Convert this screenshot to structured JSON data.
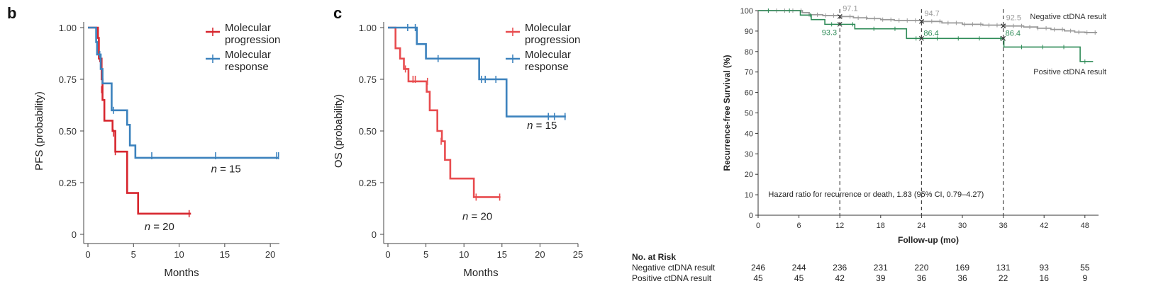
{
  "colors": {
    "progression": "#d7262e",
    "progression_light": "#e84c4f",
    "response": "#3c82bd",
    "negative": "#999999",
    "positive": "#2e8b57"
  },
  "chart_data": [
    {
      "panel": "b",
      "type": "line",
      "xlabel": "Months",
      "ylabel": "PFS (probability)",
      "xlim": [
        0,
        21
      ],
      "ylim": [
        0,
        1
      ],
      "xticks": [
        "0",
        "5",
        "10",
        "15",
        "20"
      ],
      "xtick_values": [
        0,
        5,
        10,
        15,
        20
      ],
      "yticks": [
        "0",
        "0.25",
        "0.50",
        "0.75",
        "1.00"
      ],
      "ytick_values": [
        0,
        0.25,
        0.5,
        0.75,
        1.0
      ],
      "legend": [
        "Molecular progression",
        "Molecular response"
      ],
      "legend_lines": [
        [
          "Molecular",
          "progression"
        ],
        [
          "Molecular",
          "response"
        ]
      ],
      "series": [
        {
          "name": "Molecular progression",
          "color": "#d7262e",
          "steps": [
            [
              0,
              1.0
            ],
            [
              1.1,
              0.95
            ],
            [
              1.2,
              0.85
            ],
            [
              1.5,
              0.75
            ],
            [
              1.6,
              0.65
            ],
            [
              1.8,
              0.55
            ],
            [
              2.7,
              0.5
            ],
            [
              3.0,
              0.4
            ],
            [
              4.3,
              0.2
            ],
            [
              5.5,
              0.1
            ],
            [
              11.3,
              0.1
            ]
          ],
          "censors": [
            [
              1.3,
              0.85
            ],
            [
              1.5,
              0.7
            ],
            [
              2.8,
              0.49
            ],
            [
              3.0,
              0.4
            ],
            [
              11.1,
              0.1
            ]
          ],
          "annotation": "n = 20",
          "annotation_at": [
            6.2,
            0.02
          ]
        },
        {
          "name": "Molecular response",
          "color": "#3c82bd",
          "steps": [
            [
              0,
              1.0
            ],
            [
              0.9,
              0.93
            ],
            [
              1.0,
              0.87
            ],
            [
              1.4,
              0.8
            ],
            [
              1.6,
              0.73
            ],
            [
              2.6,
              0.6
            ],
            [
              4.3,
              0.53
            ],
            [
              4.6,
              0.43
            ],
            [
              5.2,
              0.37
            ],
            [
              20.9,
              0.37
            ]
          ],
          "censors": [
            [
              1.3,
              0.87
            ],
            [
              2.8,
              0.6
            ],
            [
              7.0,
              0.38
            ],
            [
              14.0,
              0.38
            ],
            [
              20.7,
              0.38
            ],
            [
              20.9,
              0.38
            ]
          ],
          "annotation": "n = 15",
          "annotation_at": [
            13.5,
            0.3
          ]
        }
      ]
    },
    {
      "panel": "c",
      "type": "line",
      "xlabel": "Months",
      "ylabel": "OS (probability)",
      "xlim": [
        0,
        25
      ],
      "ylim": [
        0,
        1
      ],
      "xticks": [
        "0",
        "5",
        "10",
        "15",
        "20",
        "25"
      ],
      "xtick_values": [
        0,
        5,
        10,
        15,
        20,
        25
      ],
      "yticks": [
        "0",
        "0.25",
        "0.50",
        "0.75",
        "1.00"
      ],
      "ytick_values": [
        0,
        0.25,
        0.5,
        0.75,
        1.0
      ],
      "legend": [
        "Molecular progression",
        "Molecular response"
      ],
      "legend_lines": [
        [
          "Molecular",
          "progression"
        ],
        [
          "Molecular",
          "response"
        ]
      ],
      "series": [
        {
          "name": "Molecular progression",
          "color": "#e84c4f",
          "steps": [
            [
              0,
              1.0
            ],
            [
              1.0,
              0.9
            ],
            [
              1.6,
              0.85
            ],
            [
              2.1,
              0.8
            ],
            [
              2.7,
              0.74
            ],
            [
              5.1,
              0.69
            ],
            [
              5.5,
              0.6
            ],
            [
              6.5,
              0.5
            ],
            [
              7.1,
              0.45
            ],
            [
              7.5,
              0.36
            ],
            [
              8.2,
              0.27
            ],
            [
              11.3,
              0.18
            ],
            [
              14.8,
              0.18
            ]
          ],
          "censors": [
            [
              2.3,
              0.8
            ],
            [
              3.3,
              0.75
            ],
            [
              3.6,
              0.75
            ],
            [
              5.2,
              0.74
            ],
            [
              7.0,
              0.45
            ],
            [
              11.6,
              0.18
            ],
            [
              14.7,
              0.18
            ]
          ],
          "annotation": "n = 20",
          "annotation_at": [
            9.8,
            0.07
          ]
        },
        {
          "name": "Molecular response",
          "color": "#3c82bd",
          "steps": [
            [
              0,
              1.0
            ],
            [
              3.8,
              0.92
            ],
            [
              5.0,
              0.85
            ],
            [
              12.0,
              0.75
            ],
            [
              15.6,
              0.57
            ],
            [
              23.4,
              0.57
            ]
          ],
          "censors": [
            [
              2.6,
              1.0
            ],
            [
              3.6,
              1.0
            ],
            [
              6.6,
              0.85
            ],
            [
              12.3,
              0.75
            ],
            [
              12.8,
              0.75
            ],
            [
              14.2,
              0.75
            ],
            [
              21.1,
              0.57
            ],
            [
              21.9,
              0.57
            ],
            [
              23.3,
              0.57
            ]
          ],
          "annotation": "n = 15",
          "annotation_at": [
            18.3,
            0.51
          ]
        }
      ]
    },
    {
      "panel": "",
      "type": "line",
      "xlabel": "Follow-up (mo)",
      "ylabel": "Recurrence-free Survival (%)",
      "xlim": [
        0,
        50
      ],
      "ylim": [
        0,
        100
      ],
      "xticks": [
        "0",
        "6",
        "12",
        "18",
        "24",
        "30",
        "36",
        "42",
        "48"
      ],
      "xtick_values": [
        0,
        6,
        12,
        18,
        24,
        30,
        36,
        42,
        48
      ],
      "yticks": [
        "0",
        "10",
        "20",
        "30",
        "40",
        "50",
        "60",
        "70",
        "80",
        "90",
        "100"
      ],
      "ytick_values": [
        0,
        10,
        20,
        30,
        40,
        50,
        60,
        70,
        80,
        90,
        100
      ],
      "annotation": "Hazard ratio for recurrence or death, 1.83 (95% CI, 0.79–4.27)",
      "reference_lines_x": [
        12,
        24,
        36
      ],
      "series": [
        {
          "name": "Negative ctDNA result",
          "color": "#999999",
          "steps": [
            [
              0,
              100
            ],
            [
              6.5,
              99
            ],
            [
              7.5,
              98
            ],
            [
              9.5,
              97.6
            ],
            [
              12,
              97.1
            ],
            [
              14,
              96.5
            ],
            [
              16,
              96.1
            ],
            [
              18,
              95.6
            ],
            [
              20,
              95.2
            ],
            [
              24,
              94.7
            ],
            [
              27,
              94.0
            ],
            [
              30,
              93.3
            ],
            [
              33,
              92.9
            ],
            [
              36,
              92.5
            ],
            [
              39,
              92.0
            ],
            [
              41,
              91.4
            ],
            [
              43,
              90.8
            ],
            [
              45,
              90.1
            ],
            [
              46.5,
              89.5
            ],
            [
              48,
              89.3
            ],
            [
              49.8,
              89.3
            ]
          ],
          "point_labels": [
            {
              "x": 12,
              "y": 97.1,
              "label": "97.1"
            },
            {
              "x": 24,
              "y": 94.7,
              "label": "94.7"
            },
            {
              "x": 36,
              "y": 92.5,
              "label": "92.5"
            }
          ],
          "end_label": "Negative ctDNA result"
        },
        {
          "name": "Positive ctDNA result",
          "color": "#2e8b57",
          "steps": [
            [
              0,
              100
            ],
            [
              6.2,
              97.8
            ],
            [
              7.8,
              95.6
            ],
            [
              9.8,
              93.3
            ],
            [
              14.2,
              91.1
            ],
            [
              21.8,
              86.4
            ],
            [
              36.1,
              82.2
            ],
            [
              47.3,
              75.1
            ],
            [
              49.2,
              75.1
            ]
          ],
          "point_labels": [
            {
              "x": 12,
              "y": 93.3,
              "label": "93.3"
            },
            {
              "x": 24,
              "y": 86.4,
              "label": "86.4"
            },
            {
              "x": 36,
              "y": 86.4,
              "label": "86.4"
            }
          ],
          "end_label": "Positive ctDNA result"
        }
      ],
      "risk_table": {
        "title": "No. at Risk",
        "timepoints": [
          0,
          6,
          12,
          18,
          24,
          30,
          36,
          42,
          48
        ],
        "rows": [
          {
            "label": "Negative ctDNA result",
            "values": [
              "246",
              "244",
              "236",
              "231",
              "220",
              "169",
              "131",
              "93",
              "55"
            ]
          },
          {
            "label": "Positive ctDNA result",
            "values": [
              "45",
              "45",
              "42",
              "39",
              "36",
              "36",
              "22",
              "16",
              "9"
            ]
          }
        ]
      }
    }
  ]
}
